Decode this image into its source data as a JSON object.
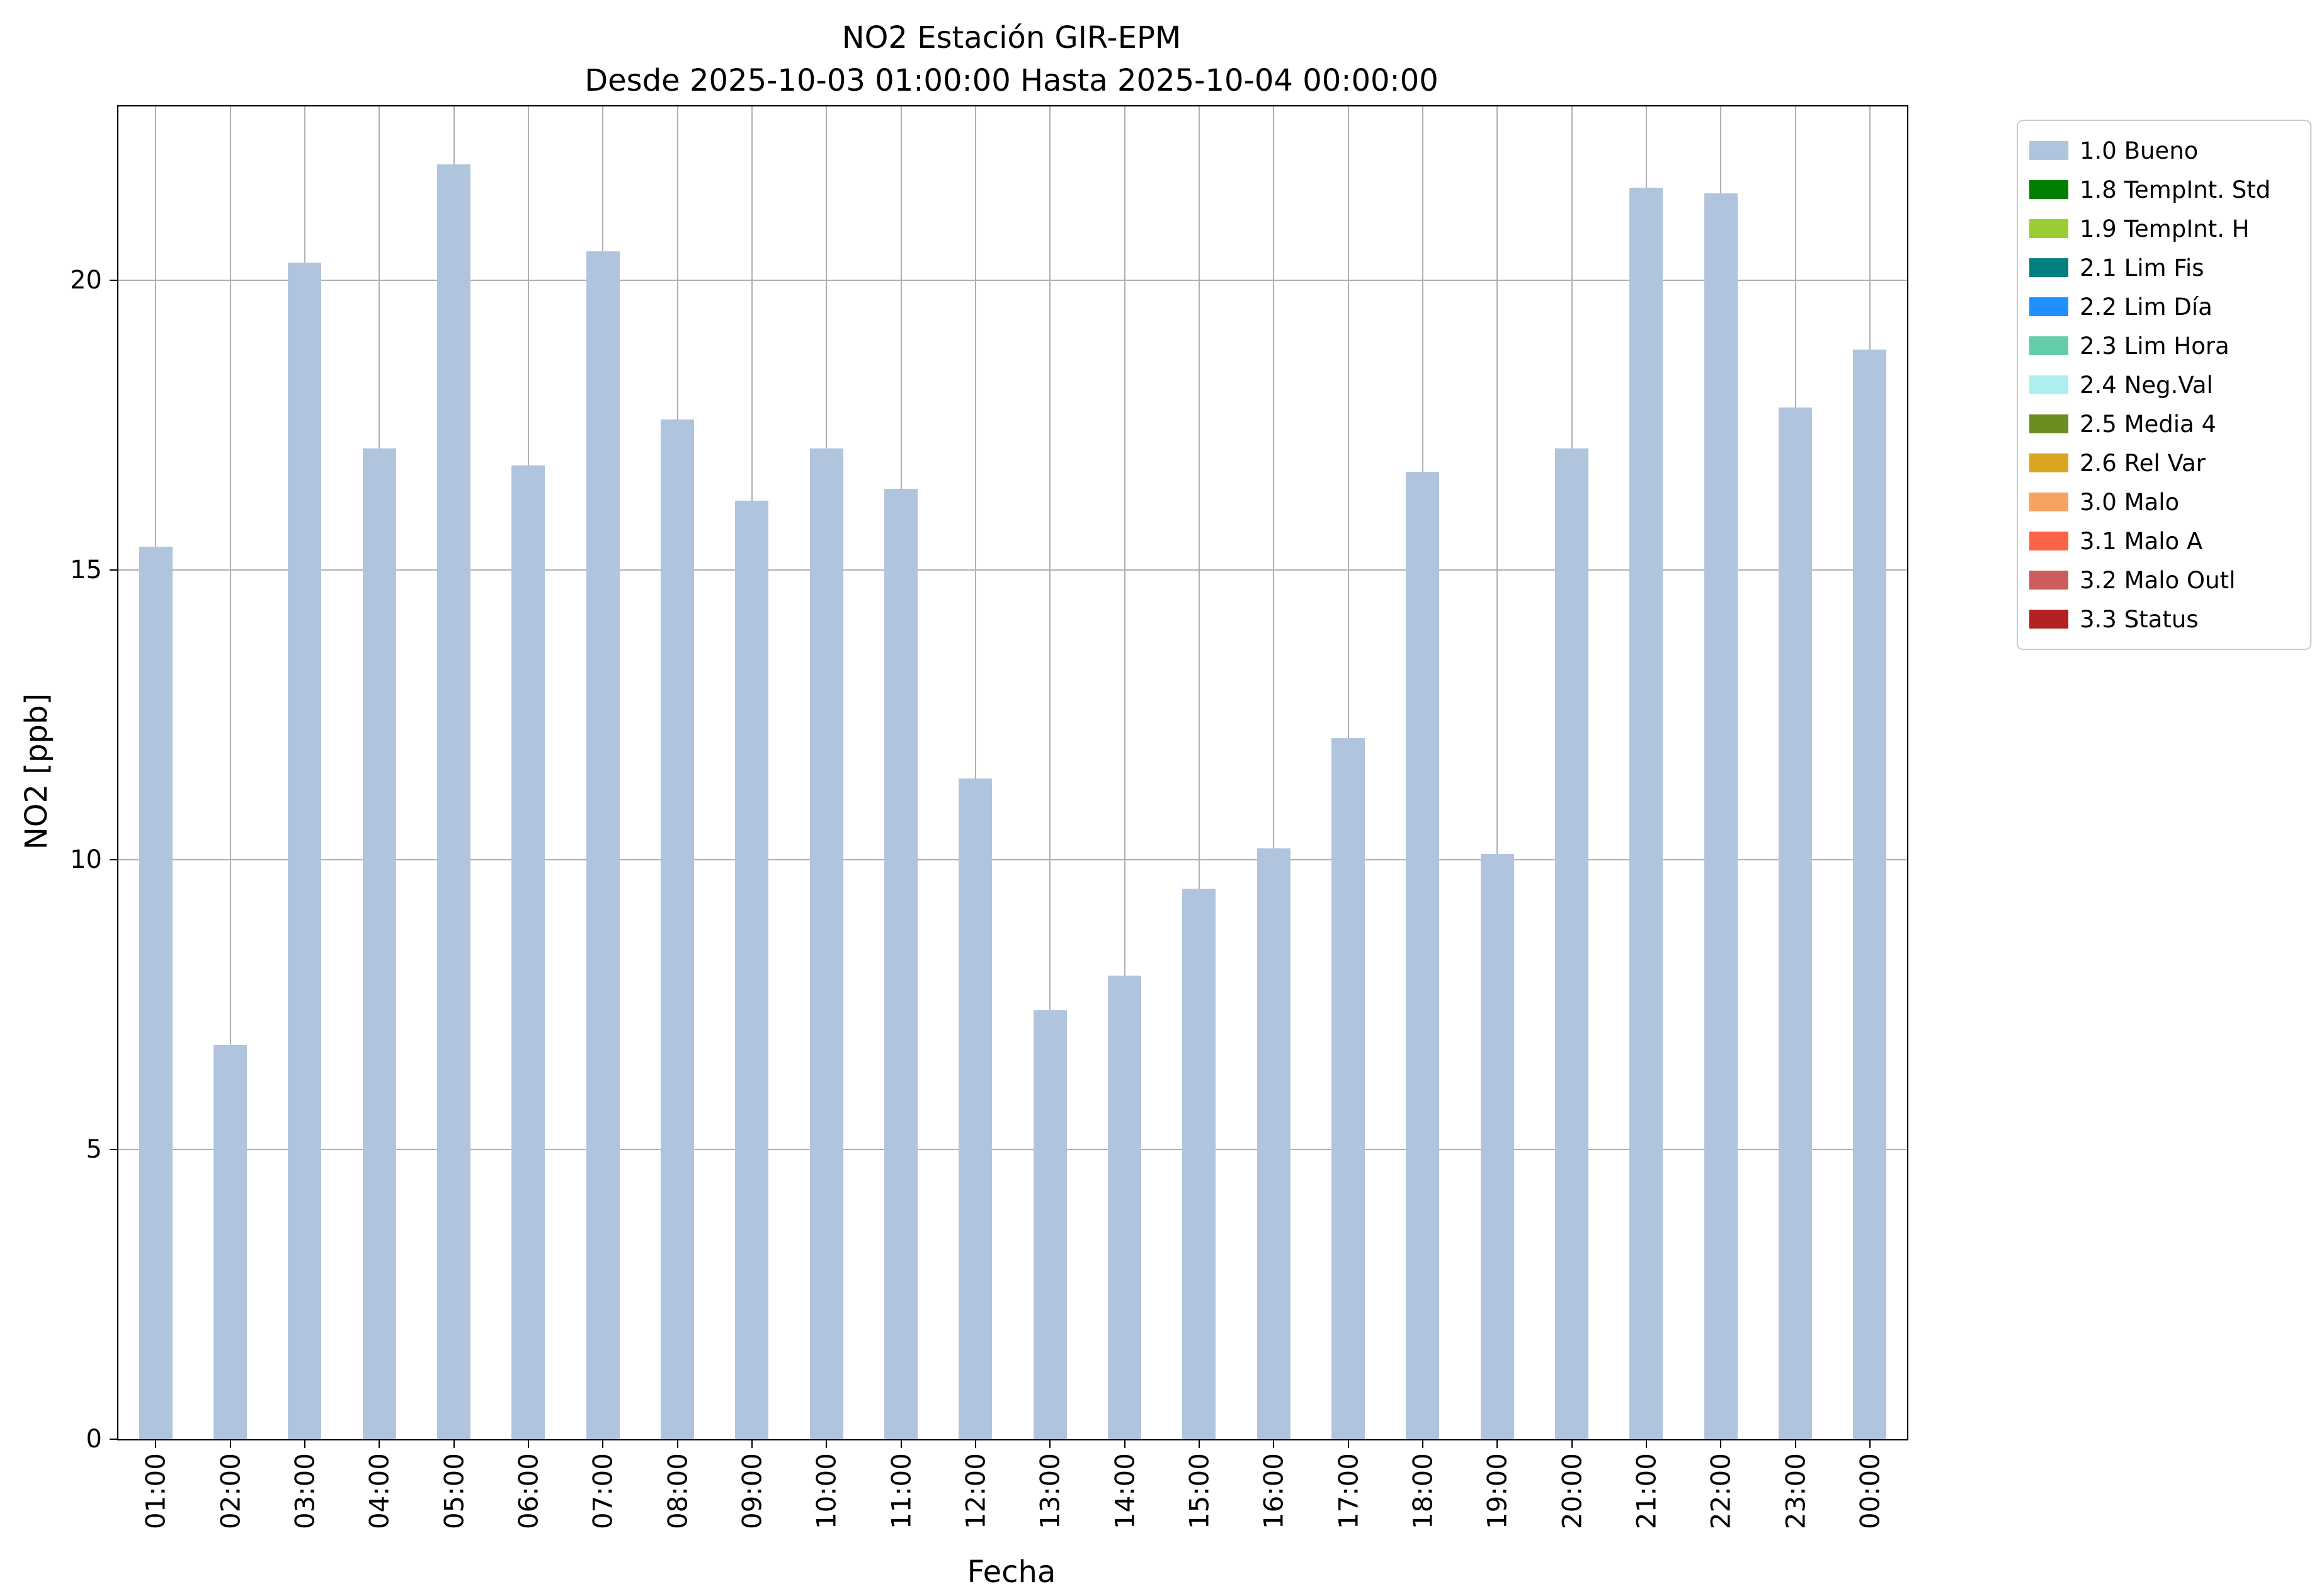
{
  "chart_data": {
    "type": "bar",
    "title": "NO2 Estación GIR-EPM",
    "subtitle": "Desde 2025-10-03 01:00:00 Hasta 2025-10-04 00:00:00",
    "xlabel": "Fecha",
    "ylabel": "NO2 [ppb]",
    "ylim": [
      0,
      23
    ],
    "yticks": [
      0,
      5,
      10,
      15,
      20
    ],
    "grid": true,
    "bar_color": "#b0c4de",
    "categories": [
      "01:00",
      "02:00",
      "03:00",
      "04:00",
      "05:00",
      "06:00",
      "07:00",
      "08:00",
      "09:00",
      "10:00",
      "11:00",
      "12:00",
      "13:00",
      "14:00",
      "15:00",
      "16:00",
      "17:00",
      "18:00",
      "19:00",
      "20:00",
      "21:00",
      "22:00",
      "23:00",
      "00:00"
    ],
    "values": [
      15.4,
      6.8,
      20.3,
      17.1,
      22.0,
      16.8,
      20.5,
      17.6,
      16.2,
      17.1,
      16.4,
      11.4,
      7.4,
      8.0,
      9.5,
      10.2,
      12.1,
      16.7,
      10.1,
      17.1,
      21.6,
      21.5,
      17.8,
      18.8
    ],
    "legend": {
      "position": "outside-top-right",
      "entries": [
        {
          "label": "1.0 Bueno",
          "color": "#b0c4de"
        },
        {
          "label": "1.8 TempInt. Std",
          "color": "#008000"
        },
        {
          "label": "1.9 TempInt. H",
          "color": "#9acd32"
        },
        {
          "label": "2.1 Lim Fis",
          "color": "#008080"
        },
        {
          "label": "2.2 Lim Día",
          "color": "#1e90ff"
        },
        {
          "label": "2.3 Lim Hora",
          "color": "#66cdaa"
        },
        {
          "label": "2.4 Neg.Val",
          "color": "#afeeee"
        },
        {
          "label": "2.5 Media 4",
          "color": "#6b8e23"
        },
        {
          "label": "2.6 Rel Var",
          "color": "#daa520"
        },
        {
          "label": "3.0 Malo",
          "color": "#f4a460"
        },
        {
          "label": "3.1 Malo A",
          "color": "#ff6347"
        },
        {
          "label": "3.2 Malo Outl",
          "color": "#cd5c5c"
        },
        {
          "label": "3.3 Status",
          "color": "#b22222"
        }
      ]
    }
  }
}
